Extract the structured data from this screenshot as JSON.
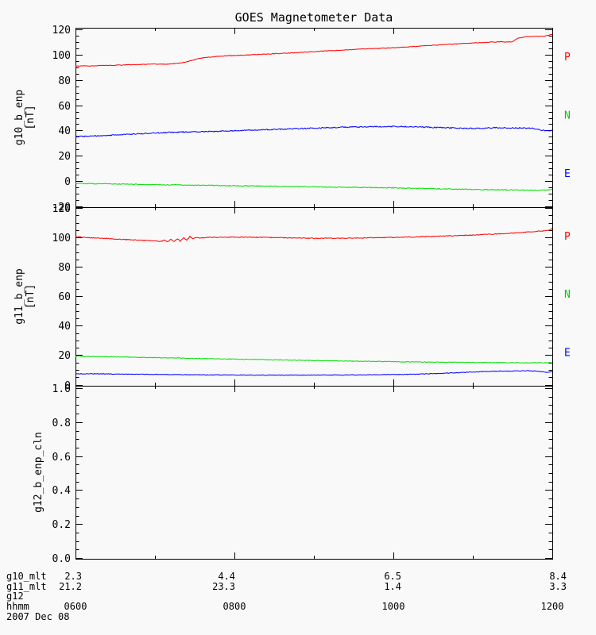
{
  "chart_data": {
    "type": "line",
    "title": "GOES Magnetometer Data",
    "date_label": "2007 Dec 08",
    "x_axis": {
      "unit": "hhmm",
      "range_hours": [
        6,
        12
      ],
      "major_tick_hours": [
        6,
        8,
        10,
        12
      ],
      "minor_tick_hours": [
        7,
        9,
        11
      ],
      "tick_labels": [
        "0600",
        "0800",
        "1000",
        "1200"
      ]
    },
    "footer_rows": [
      {
        "label": "g10_mlt",
        "align": "right",
        "values": [
          "2.3",
          "4.4",
          "6.5",
          "8.4"
        ]
      },
      {
        "label": "g11_mlt",
        "align": "right",
        "values": [
          "21.2",
          "23.3",
          "1.4",
          "3.3"
        ]
      },
      {
        "label": "g12",
        "align": "right",
        "values": [
          "",
          "",
          "",
          ""
        ]
      },
      {
        "label": "hhmm",
        "align": "center",
        "values": [
          "0600",
          "0800",
          "1000",
          "1200"
        ]
      }
    ],
    "panels": [
      {
        "ylabel_lines": [
          "g10_b_enp",
          "[nT]"
        ],
        "ylim": [
          -20,
          120
        ],
        "ytick_labels": [
          "120",
          "100",
          "80",
          "60",
          "40",
          "20",
          "0",
          "-20"
        ],
        "y_minor_step": 5,
        "right_labels": [
          {
            "label": "P",
            "color": "#ff0000"
          },
          {
            "label": "N",
            "color": "#00cc00"
          },
          {
            "label": "E",
            "color": "#0000ff"
          }
        ],
        "series": [
          {
            "name": "red-trace",
            "color": "#ff0000",
            "noise": 0.4,
            "points": [
              [
                6.0,
                91.0
              ],
              [
                6.15,
                91.1
              ],
              [
                6.3,
                91.3
              ],
              [
                6.5,
                91.6
              ],
              [
                6.7,
                92.0
              ],
              [
                6.9,
                92.4
              ],
              [
                7.05,
                92.5
              ],
              [
                7.15,
                92.4
              ],
              [
                7.25,
                92.9
              ],
              [
                7.35,
                93.8
              ],
              [
                7.45,
                95.2
              ],
              [
                7.55,
                96.8
              ],
              [
                7.65,
                97.9
              ],
              [
                7.75,
                98.5
              ],
              [
                7.85,
                98.9
              ],
              [
                8.0,
                99.3
              ],
              [
                8.2,
                99.9
              ],
              [
                8.4,
                100.4
              ],
              [
                8.6,
                101.0
              ],
              [
                8.8,
                101.7
              ],
              [
                9.0,
                102.4
              ],
              [
                9.2,
                103.1
              ],
              [
                9.4,
                103.8
              ],
              [
                9.6,
                104.4
              ],
              [
                9.8,
                104.9
              ],
              [
                10.0,
                105.5
              ],
              [
                10.2,
                106.2
              ],
              [
                10.4,
                107.0
              ],
              [
                10.6,
                107.8
              ],
              [
                10.8,
                108.5
              ],
              [
                11.0,
                109.2
              ],
              [
                11.2,
                109.8
              ],
              [
                11.35,
                110.1
              ],
              [
                11.45,
                110.0
              ],
              [
                11.5,
                110.3
              ],
              [
                11.55,
                112.5
              ],
              [
                11.6,
                113.6
              ],
              [
                11.7,
                114.2
              ],
              [
                11.8,
                114.5
              ],
              [
                11.88,
                114.6
              ],
              [
                11.93,
                114.9
              ],
              [
                12.0,
                116.2
              ]
            ]
          },
          {
            "name": "blue-trace",
            "color": "#0000ff",
            "noise": 0.7,
            "points": [
              [
                6.0,
                35.2
              ],
              [
                6.2,
                35.6
              ],
              [
                6.4,
                36.1
              ],
              [
                6.6,
                36.7
              ],
              [
                6.8,
                37.4
              ],
              [
                7.0,
                38.0
              ],
              [
                7.2,
                38.5
              ],
              [
                7.4,
                38.8
              ],
              [
                7.6,
                39.1
              ],
              [
                7.8,
                39.4
              ],
              [
                8.0,
                39.8
              ],
              [
                8.3,
                40.4
              ],
              [
                8.6,
                41.1
              ],
              [
                8.9,
                41.7
              ],
              [
                9.2,
                42.3
              ],
              [
                9.5,
                42.8
              ],
              [
                9.8,
                43.1
              ],
              [
                10.0,
                43.2
              ],
              [
                10.2,
                43.0
              ],
              [
                10.4,
                42.7
              ],
              [
                10.6,
                42.3
              ],
              [
                10.8,
                41.9
              ],
              [
                11.0,
                41.6
              ],
              [
                11.15,
                41.9
              ],
              [
                11.3,
                42.3
              ],
              [
                11.45,
                41.9
              ],
              [
                11.6,
                42.1
              ],
              [
                11.75,
                41.8
              ],
              [
                11.85,
                40.4
              ],
              [
                11.92,
                39.7
              ],
              [
                12.0,
                40.0
              ]
            ]
          },
          {
            "name": "green-trace",
            "color": "#00dd00",
            "noise": 0.5,
            "points": [
              [
                6.0,
                -1.9
              ],
              [
                6.4,
                -2.2
              ],
              [
                6.8,
                -2.6
              ],
              [
                7.2,
                -3.0
              ],
              [
                7.6,
                -3.3
              ],
              [
                8.0,
                -3.7
              ],
              [
                8.4,
                -4.0
              ],
              [
                8.8,
                -4.3
              ],
              [
                9.2,
                -4.7
              ],
              [
                9.6,
                -5.0
              ],
              [
                10.0,
                -5.4
              ],
              [
                10.4,
                -5.9
              ],
              [
                10.8,
                -6.4
              ],
              [
                11.2,
                -6.8
              ],
              [
                11.5,
                -7.0
              ],
              [
                11.7,
                -7.2
              ],
              [
                11.85,
                -7.3
              ],
              [
                11.95,
                -7.0
              ],
              [
                12.0,
                -6.8
              ]
            ]
          }
        ]
      },
      {
        "ylabel_lines": [
          "g11_b_enp",
          "[nT]"
        ],
        "ylim": [
          0,
          120
        ],
        "ytick_labels": [
          "120",
          "100",
          "80",
          "60",
          "40",
          "20",
          "0"
        ],
        "y_minor_step": 5,
        "right_labels": [
          {
            "label": "P",
            "color": "#ff0000"
          },
          {
            "label": "N",
            "color": "#00cc00"
          },
          {
            "label": "E",
            "color": "#0000ff"
          }
        ],
        "series": [
          {
            "name": "red-trace",
            "color": "#ff0000",
            "noise": 0.5,
            "points": [
              [
                6.0,
                100.4
              ],
              [
                6.2,
                99.8
              ],
              [
                6.4,
                99.2
              ],
              [
                6.6,
                98.6
              ],
              [
                6.8,
                98.1
              ],
              [
                7.0,
                97.6
              ],
              [
                7.08,
                97.3
              ],
              [
                7.12,
                98.3
              ],
              [
                7.16,
                97.0
              ],
              [
                7.2,
                98.6
              ],
              [
                7.24,
                97.2
              ],
              [
                7.28,
                99.0
              ],
              [
                7.32,
                97.5
              ],
              [
                7.36,
                99.8
              ],
              [
                7.4,
                98.2
              ],
              [
                7.44,
                100.6
              ],
              [
                7.48,
                99.0
              ],
              [
                7.52,
                100.0
              ],
              [
                7.58,
                99.6
              ],
              [
                7.65,
                100.0
              ],
              [
                7.75,
                100.1
              ],
              [
                7.9,
                100.2
              ],
              [
                8.1,
                100.2
              ],
              [
                8.3,
                100.1
              ],
              [
                8.5,
                99.9
              ],
              [
                8.75,
                99.6
              ],
              [
                9.0,
                99.4
              ],
              [
                9.25,
                99.4
              ],
              [
                9.5,
                99.5
              ],
              [
                9.75,
                99.8
              ],
              [
                10.0,
                100.0
              ],
              [
                10.25,
                100.3
              ],
              [
                10.5,
                100.7
              ],
              [
                10.75,
                101.1
              ],
              [
                11.0,
                101.6
              ],
              [
                11.25,
                102.2
              ],
              [
                11.5,
                102.9
              ],
              [
                11.7,
                103.6
              ],
              [
                11.85,
                104.2
              ],
              [
                11.95,
                104.7
              ],
              [
                12.0,
                106.0
              ]
            ]
          },
          {
            "name": "green-trace",
            "color": "#00dd00",
            "noise": 0.4,
            "points": [
              [
                6.0,
                19.2
              ],
              [
                6.3,
                19.0
              ],
              [
                6.6,
                18.7
              ],
              [
                7.0,
                18.3
              ],
              [
                7.4,
                17.9
              ],
              [
                7.8,
                17.5
              ],
              [
                8.2,
                17.1
              ],
              [
                8.6,
                16.7
              ],
              [
                9.0,
                16.3
              ],
              [
                9.4,
                16.0
              ],
              [
                9.8,
                15.7
              ],
              [
                10.2,
                15.4
              ],
              [
                10.6,
                15.2
              ],
              [
                11.0,
                15.0
              ],
              [
                11.4,
                14.9
              ],
              [
                11.7,
                14.8
              ],
              [
                12.0,
                14.9
              ]
            ]
          },
          {
            "name": "blue-trace",
            "color": "#0000ff",
            "noise": 0.4,
            "points": [
              [
                6.0,
                7.4
              ],
              [
                6.4,
                7.2
              ],
              [
                6.8,
                7.0
              ],
              [
                7.2,
                6.8
              ],
              [
                7.6,
                6.6
              ],
              [
                8.0,
                6.5
              ],
              [
                8.4,
                6.4
              ],
              [
                8.8,
                6.4
              ],
              [
                9.2,
                6.5
              ],
              [
                9.6,
                6.6
              ],
              [
                10.0,
                6.8
              ],
              [
                10.3,
                7.0
              ],
              [
                10.6,
                7.6
              ],
              [
                10.9,
                8.3
              ],
              [
                11.1,
                8.8
              ],
              [
                11.3,
                9.1
              ],
              [
                11.5,
                9.2
              ],
              [
                11.7,
                9.4
              ],
              [
                11.8,
                9.2
              ],
              [
                11.88,
                8.6
              ],
              [
                11.94,
                8.4
              ],
              [
                12.0,
                8.9
              ]
            ]
          }
        ]
      },
      {
        "ylabel_lines": [
          "g12_b_enp_cln"
        ],
        "ylim": [
          0,
          1
        ],
        "ytick_labels": [
          "1.0",
          "0.8",
          "0.6",
          "0.4",
          "0.2",
          "0.0"
        ],
        "y_minor_step": 0.05,
        "right_labels": [],
        "series": []
      }
    ]
  }
}
